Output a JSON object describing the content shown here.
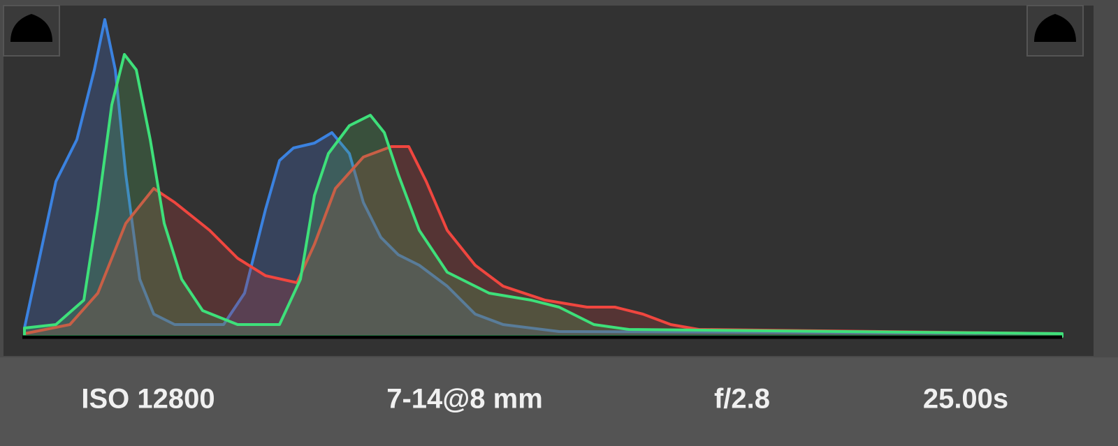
{
  "info": [
    "ISO 12800",
    "7-14@8 mm",
    "f/2.8",
    "25.00s"
  ]
}
